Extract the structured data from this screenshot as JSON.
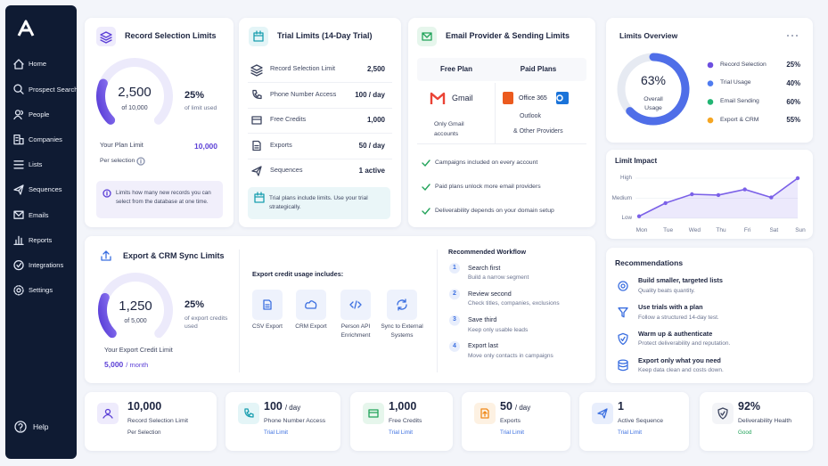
{
  "sidebar": {
    "nav": [
      "Home",
      "Prospect Search",
      "People",
      "Companies",
      "Lists",
      "Sequences",
      "Emails",
      "Reports",
      "Integrations",
      "Settings"
    ],
    "help": "Help"
  },
  "record_selection": {
    "title": "Record Selection Limits",
    "used": "2,500",
    "of": "of 10,000",
    "percent": {
      "value": 25,
      "label": "25%"
    },
    "percent_caption": "of limit used",
    "plan_label": "Your Plan Limit",
    "plan_value": "10,000",
    "per": "Per selection",
    "info": "Limits how many new records you can select from the database at one time."
  },
  "trial": {
    "title": "Trial Limits (14-Day Trial)",
    "rows": [
      {
        "label": "Record Selection Limit",
        "value": "2,500"
      },
      {
        "label": "Phone Number Access",
        "value": "100 / day"
      },
      {
        "label": "Free Credits",
        "value": "1,000"
      },
      {
        "label": "Exports",
        "value": "50 / day"
      },
      {
        "label": "Sequences",
        "value": "1 active"
      }
    ],
    "note": "Trial plans include limits. Use your trial strategically."
  },
  "email": {
    "title": "Email Provider & Sending Limits",
    "free_plan": "Free Plan",
    "paid_plans": "Paid Plans",
    "gmail": "Gmail",
    "gmail_note": "Only Gmail accounts",
    "office": "Office 365",
    "outlook": "Outlook",
    "other": "& Other Providers",
    "checks": [
      "Campaigns included on every account",
      "Paid plans unlock more email providers",
      "Deliverability depends on your domain setup"
    ]
  },
  "overview": {
    "title": "Limits Overview",
    "center": {
      "value": 63,
      "label": "63%"
    },
    "center_caption": "Overall Usage",
    "items": [
      {
        "name": "Record Selection",
        "color": "#6d4fe0",
        "value": "25%"
      },
      {
        "name": "Trial Usage",
        "color": "#4f7cf0",
        "value": "40%"
      },
      {
        "name": "Email Sending",
        "color": "#22b573",
        "value": "60%"
      },
      {
        "name": "Export & CRM",
        "color": "#f5a623",
        "value": "55%"
      }
    ]
  },
  "impact": {
    "type": "line",
    "title": "Limit Impact",
    "categories": [
      "Mon",
      "Tue",
      "Wed",
      "Thu",
      "Fri",
      "Sat",
      "Sun"
    ],
    "values": [
      5,
      38,
      60,
      58,
      72,
      52,
      100
    ],
    "ylim": [
      0,
      100
    ],
    "yticks": [
      {
        "value": 0,
        "label": "Low"
      },
      {
        "value": 50,
        "label": "Medium"
      },
      {
        "value": 100,
        "label": "High"
      }
    ],
    "color": "#7b61e8"
  },
  "export": {
    "title": "Export & CRM Sync Limits",
    "used": "1,250",
    "of": "of 5,000",
    "percent": {
      "value": 25,
      "label": "25%"
    },
    "percent_caption": "of export credits used",
    "credit_label": "Your Export Credit Limit",
    "credit_value": "5,000",
    "credit_unit": "/ month",
    "usage_title": "Export credit usage includes:",
    "usage": [
      "CSV Export",
      "CRM Export",
      "Person API Enrichment",
      "Sync to External Systems"
    ]
  },
  "workflow": {
    "title": "Recommended Workflow",
    "steps": [
      {
        "n": "1",
        "title": "Search first",
        "desc": "Build a narrow segment"
      },
      {
        "n": "2",
        "title": "Review second",
        "desc": "Check titles, companies, exclusions"
      },
      {
        "n": "3",
        "title": "Save third",
        "desc": "Keep only usable leads"
      },
      {
        "n": "4",
        "title": "Export last",
        "desc": "Move only contacts in campaigns"
      }
    ]
  },
  "recommendations": {
    "title": "Recommendations",
    "items": [
      {
        "title": "Build smaller, targeted lists",
        "desc": "Quality beats quantity."
      },
      {
        "title": "Use trials with a plan",
        "desc": "Follow a structured 14-day test."
      },
      {
        "title": "Warm up & authenticate",
        "desc": "Protect deliverability and reputation."
      },
      {
        "title": "Export only what you need",
        "desc": "Keep data clean and costs down."
      }
    ]
  },
  "stats": [
    {
      "value": "10,000",
      "label": "Record Selection Limit",
      "sub": "Per Selection"
    },
    {
      "value": "100",
      "unit": "/ day",
      "label": "Phone Number Access",
      "sub": "Trial Limit"
    },
    {
      "value": "1,000",
      "label": "Free Credits",
      "sub": "Trial Limit"
    },
    {
      "value": "50",
      "unit": "/ day",
      "label": "Exports",
      "sub": "Trial Limit"
    },
    {
      "value": "1",
      "label": "Active Sequence",
      "sub": "Trial Limit"
    },
    {
      "value": "92%",
      "label": "Deliverability Health",
      "sub": "Good"
    }
  ]
}
